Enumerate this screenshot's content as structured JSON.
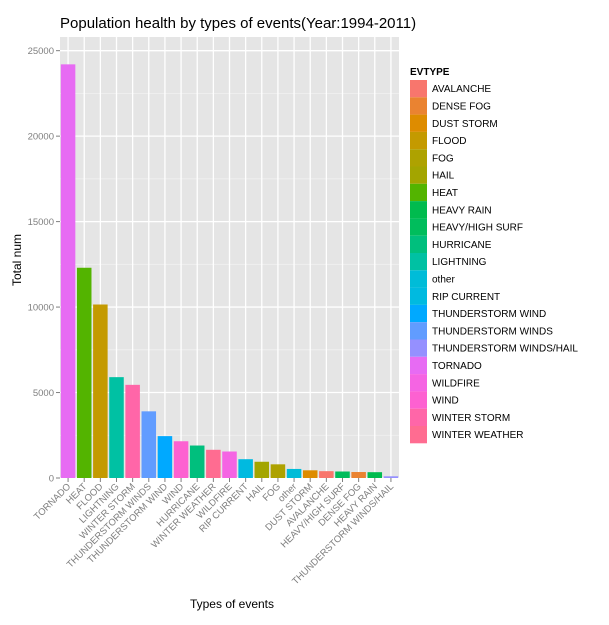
{
  "chart_data": {
    "type": "bar",
    "title": "Population health by types of events(Year:1994-2011)",
    "xlabel": "Types of events",
    "ylabel": "Total num",
    "ylim": [
      0,
      25800
    ],
    "yticks": [
      0,
      5000,
      10000,
      15000,
      20000,
      25000
    ],
    "grid": true,
    "legend_position": "right",
    "legend_title": "EVTYPE",
    "colors": {
      "panel_bg": "#E5E5E5",
      "grid_major": "#FFFFFF",
      "grid_minor": "#F2F2F2",
      "text": "#000000",
      "tick_text": "#7F7F7F"
    },
    "bars": [
      {
        "category": "TORNADO",
        "value": 24200,
        "color": "#E76BF3"
      },
      {
        "category": "HEAT",
        "value": 12300,
        "color": "#53B400"
      },
      {
        "category": "FLOOD",
        "value": 10150,
        "color": "#C49A00"
      },
      {
        "category": "LIGHTNING",
        "value": 5900,
        "color": "#00C1A3"
      },
      {
        "category": "WINTER STORM",
        "value": 5450,
        "color": "#FF66A8"
      },
      {
        "category": "THUNDERSTORM WINDS",
        "value": 3900,
        "color": "#619CFF"
      },
      {
        "category": "THUNDERSTORM WIND",
        "value": 2450,
        "color": "#00A9FF"
      },
      {
        "category": "WIND",
        "value": 2150,
        "color": "#FD61D1"
      },
      {
        "category": "HURRICANE",
        "value": 1900,
        "color": "#00BF7D"
      },
      {
        "category": "WINTER WEATHER",
        "value": 1650,
        "color": "#FF6C91"
      },
      {
        "category": "WILDFIRE",
        "value": 1550,
        "color": "#F564E3"
      },
      {
        "category": "RIP CURRENT",
        "value": 1100,
        "color": "#00BAE0"
      },
      {
        "category": "HAIL",
        "value": 950,
        "color": "#A3A500"
      },
      {
        "category": "FOG",
        "value": 800,
        "color": "#AEA200"
      },
      {
        "category": "other",
        "value": 530,
        "color": "#00BCD8"
      },
      {
        "category": "DUST STORM",
        "value": 450,
        "color": "#DE8C00"
      },
      {
        "category": "AVALANCHE",
        "value": 400,
        "color": "#F8766D"
      },
      {
        "category": "HEAVY/HIGH SURF",
        "value": 380,
        "color": "#00BD5C"
      },
      {
        "category": "DENSE FOG",
        "value": 350,
        "color": "#EA8331"
      },
      {
        "category": "HEAVY RAIN",
        "value": 340,
        "color": "#00BB4E"
      },
      {
        "category": "THUNDERSTORM WINDS/HAIL",
        "value": 100,
        "color": "#9590FF"
      }
    ],
    "legend": [
      {
        "label": "AVALANCHE",
        "color": "#F8766D"
      },
      {
        "label": "DENSE FOG",
        "color": "#EA8331"
      },
      {
        "label": "DUST STORM",
        "color": "#DE8C00"
      },
      {
        "label": "FLOOD",
        "color": "#C49A00"
      },
      {
        "label": "FOG",
        "color": "#AEA200"
      },
      {
        "label": "HAIL",
        "color": "#A3A500"
      },
      {
        "label": "HEAT",
        "color": "#53B400"
      },
      {
        "label": "HEAVY RAIN",
        "color": "#00BB4E"
      },
      {
        "label": "HEAVY/HIGH SURF",
        "color": "#00BD5C"
      },
      {
        "label": "HURRICANE",
        "color": "#00BF7D"
      },
      {
        "label": "LIGHTNING",
        "color": "#00C1A3"
      },
      {
        "label": "other",
        "color": "#00BCD8"
      },
      {
        "label": "RIP CURRENT",
        "color": "#00BAE0"
      },
      {
        "label": "THUNDERSTORM WIND",
        "color": "#00A9FF"
      },
      {
        "label": "THUNDERSTORM WINDS",
        "color": "#619CFF"
      },
      {
        "label": "THUNDERSTORM WINDS/HAIL",
        "color": "#9590FF"
      },
      {
        "label": "TORNADO",
        "color": "#E76BF3"
      },
      {
        "label": "WILDFIRE",
        "color": "#F564E3"
      },
      {
        "label": "WIND",
        "color": "#FD61D1"
      },
      {
        "label": "WINTER STORM",
        "color": "#FF66A8"
      },
      {
        "label": "WINTER WEATHER",
        "color": "#FF6C91"
      }
    ]
  }
}
